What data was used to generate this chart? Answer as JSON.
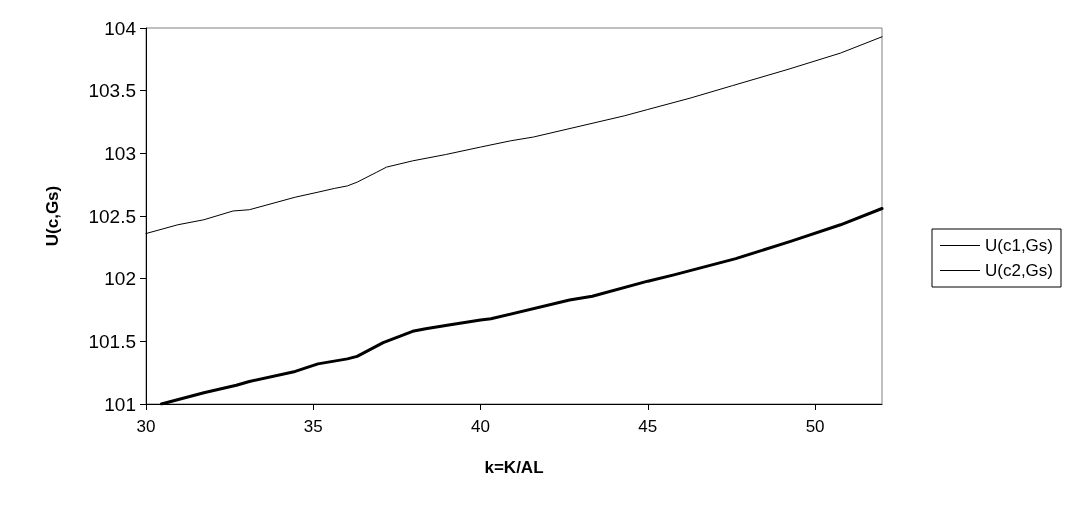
{
  "chart_data": {
    "type": "line",
    "xlabel": "k=K/AL",
    "ylabel": "U(c,Gs)",
    "xlim": [
      30,
      52
    ],
    "xticks": [
      30,
      35,
      40,
      45,
      50
    ],
    "ylim": [
      101,
      104
    ],
    "yticks": [
      101,
      101.5,
      102,
      102.5,
      103,
      103.5,
      104
    ],
    "grid": false,
    "legend": "right",
    "marker": "none",
    "line_style": "solid",
    "series": [
      {
        "name": "U(c1,Gs)",
        "color": "#000000",
        "x": [
          30.46,
          31.73,
          32.7,
          33.09,
          34.46,
          35.14,
          36.02,
          36.31,
          37.09,
          37.97,
          38.36,
          39.05,
          40.0,
          40.31,
          42.66,
          43.34,
          45.0,
          45.78,
          47.63,
          49.29,
          50.76,
          52.0
        ],
        "values": [
          101.0,
          101.09,
          101.15,
          101.18,
          101.26,
          101.32,
          101.36,
          101.38,
          101.49,
          101.58,
          101.6,
          101.63,
          101.67,
          101.68,
          101.83,
          101.86,
          101.98,
          102.03,
          102.16,
          102.3,
          102.43,
          102.56
        ]
      },
      {
        "name": "U(c2,Gs)",
        "color": "#000000",
        "x": [
          30.0,
          30.95,
          31.73,
          32.6,
          33.09,
          34.46,
          35.14,
          35.63,
          36.02,
          36.31,
          36.9,
          37.19,
          37.97,
          38.95,
          40.0,
          40.9,
          41.58,
          44.31,
          45.0,
          46.26,
          47.53,
          49.19,
          50.76,
          52.0
        ],
        "values": [
          102.36,
          102.43,
          102.47,
          102.54,
          102.55,
          102.65,
          102.69,
          102.72,
          102.74,
          102.77,
          102.85,
          102.89,
          102.94,
          102.99,
          103.05,
          103.1,
          103.13,
          103.3,
          103.35,
          103.44,
          103.54,
          103.67,
          103.8,
          103.93
        ]
      }
    ]
  }
}
